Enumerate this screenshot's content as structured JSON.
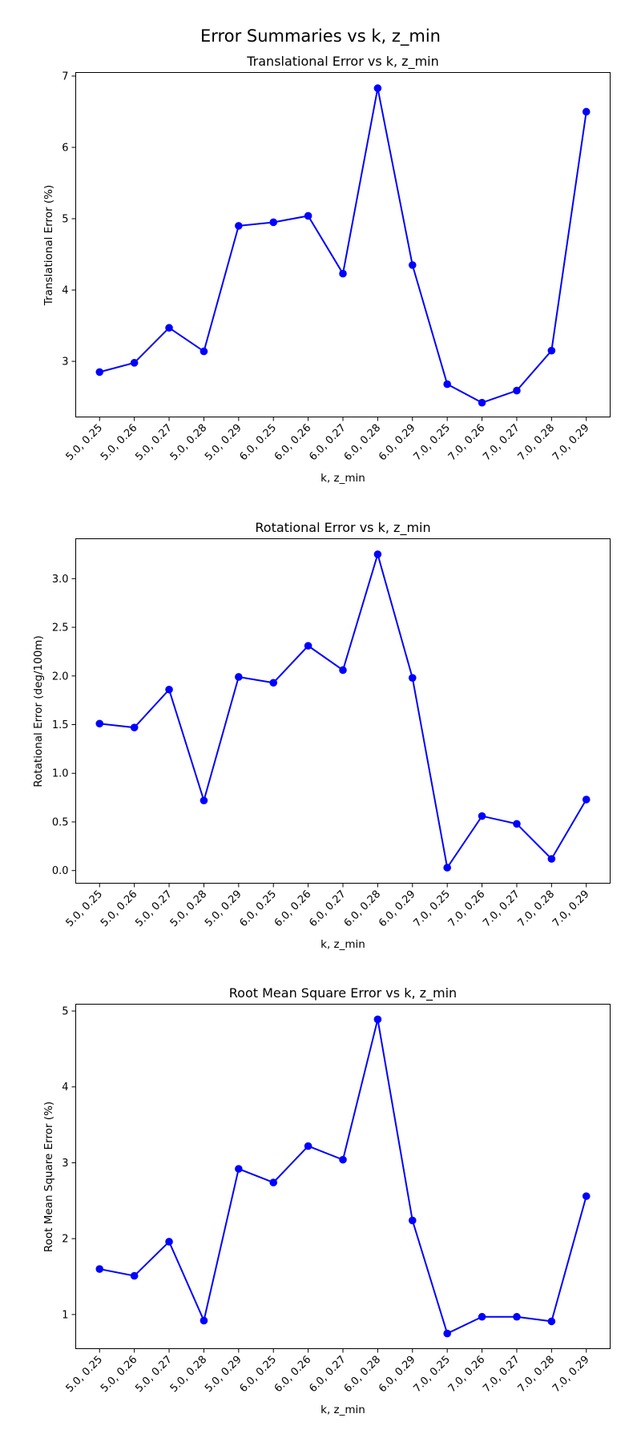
{
  "figure": {
    "title": "Error Summaries vs k, z_min"
  },
  "chart_data": [
    {
      "type": "line",
      "title": "Translational Error vs k, z_min",
      "xlabel": "k, z_min",
      "ylabel": "Translational Error (%)",
      "categories": [
        "5.0, 0.25",
        "5.0, 0.26",
        "5.0, 0.27",
        "5.0, 0.28",
        "5.0, 0.29",
        "6.0, 0.25",
        "6.0, 0.26",
        "6.0, 0.27",
        "6.0, 0.28",
        "6.0, 0.29",
        "7.0, 0.25",
        "7.0, 0.26",
        "7.0, 0.27",
        "7.0, 0.28",
        "7.0, 0.29"
      ],
      "values": [
        2.85,
        2.98,
        3.47,
        3.14,
        4.9,
        4.95,
        5.04,
        4.23,
        6.83,
        4.35,
        2.68,
        2.42,
        2.59,
        3.15,
        6.5
      ],
      "ylim": [
        2.22,
        7.05
      ],
      "yticks": [
        3,
        4,
        5,
        6,
        7
      ],
      "ytick_labels": [
        "3",
        "4",
        "5",
        "6",
        "7"
      ],
      "grid": false,
      "color": "#0000ff"
    },
    {
      "type": "line",
      "title": "Rotational Error vs k, z_min",
      "xlabel": "k, z_min",
      "ylabel": "Rotational Error (deg/100m)",
      "categories": [
        "5.0, 0.25",
        "5.0, 0.26",
        "5.0, 0.27",
        "5.0, 0.28",
        "5.0, 0.29",
        "6.0, 0.25",
        "6.0, 0.26",
        "6.0, 0.27",
        "6.0, 0.28",
        "6.0, 0.29",
        "7.0, 0.25",
        "7.0, 0.26",
        "7.0, 0.27",
        "7.0, 0.28",
        "7.0, 0.29"
      ],
      "values": [
        1.51,
        1.47,
        1.86,
        0.72,
        1.99,
        1.93,
        2.31,
        2.06,
        3.25,
        1.98,
        0.03,
        0.56,
        0.48,
        0.12,
        0.73
      ],
      "ylim": [
        -0.13,
        3.41
      ],
      "yticks": [
        0,
        0.5,
        1.0,
        1.5,
        2.0,
        2.5,
        3.0
      ],
      "ytick_labels": [
        "0.0",
        "0.5",
        "1.0",
        "1.5",
        "2.0",
        "2.5",
        "3.0"
      ],
      "grid": false,
      "color": "#0000ff"
    },
    {
      "type": "line",
      "title": "Root Mean Square Error vs k, z_min",
      "xlabel": "k, z_min",
      "ylabel": "Root Mean Square Error (%)",
      "categories": [
        "5.0, 0.25",
        "5.0, 0.26",
        "5.0, 0.27",
        "5.0, 0.28",
        "5.0, 0.29",
        "6.0, 0.25",
        "6.0, 0.26",
        "6.0, 0.27",
        "6.0, 0.28",
        "6.0, 0.29",
        "7.0, 0.25",
        "7.0, 0.26",
        "7.0, 0.27",
        "7.0, 0.28",
        "7.0, 0.29"
      ],
      "values": [
        1.6,
        1.51,
        1.96,
        0.92,
        2.92,
        2.74,
        3.22,
        3.04,
        4.89,
        2.24,
        0.75,
        0.97,
        0.97,
        0.91,
        2.56
      ],
      "ylim": [
        0.55,
        5.09
      ],
      "yticks": [
        1,
        2,
        3,
        4,
        5
      ],
      "ytick_labels": [
        "1",
        "2",
        "3",
        "4",
        "5"
      ],
      "grid": false,
      "color": "#0000ff"
    }
  ]
}
